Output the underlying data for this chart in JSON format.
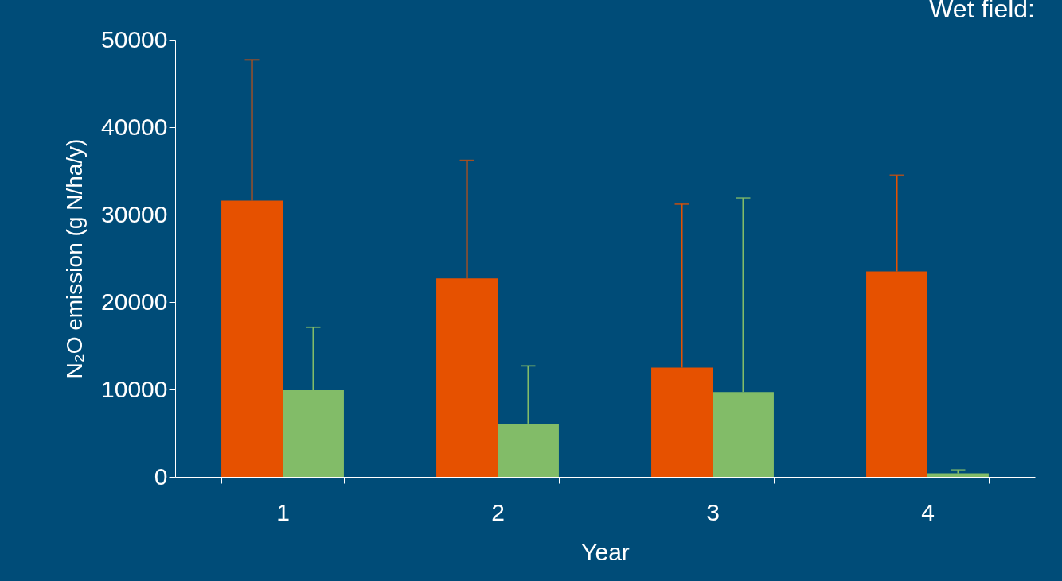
{
  "chart_data": {
    "type": "bar",
    "title": "Wet field:",
    "xlabel": "Year",
    "ylabel": "N₂O emission (g N/ha/y)",
    "categories": [
      "1",
      "2",
      "3",
      "4"
    ],
    "series": [
      {
        "color": "#e65100",
        "values": [
          31600,
          22700,
          12500,
          23500
        ],
        "errors": [
          [
            31600,
            47700
          ],
          [
            22700,
            36200
          ],
          [
            12500,
            31200
          ],
          [
            23500,
            34500
          ]
        ]
      },
      {
        "color": "#82bc68",
        "values": [
          9900,
          6100,
          9700,
          400
        ],
        "errors": [
          [
            9900,
            17100
          ],
          [
            6100,
            12700
          ],
          [
            9700,
            31900
          ],
          [
            400,
            800
          ]
        ]
      }
    ],
    "ylim": [
      0,
      50000
    ],
    "yticks": [
      0,
      10000,
      20000,
      30000,
      40000,
      50000
    ],
    "grid": false,
    "legend": false
  }
}
